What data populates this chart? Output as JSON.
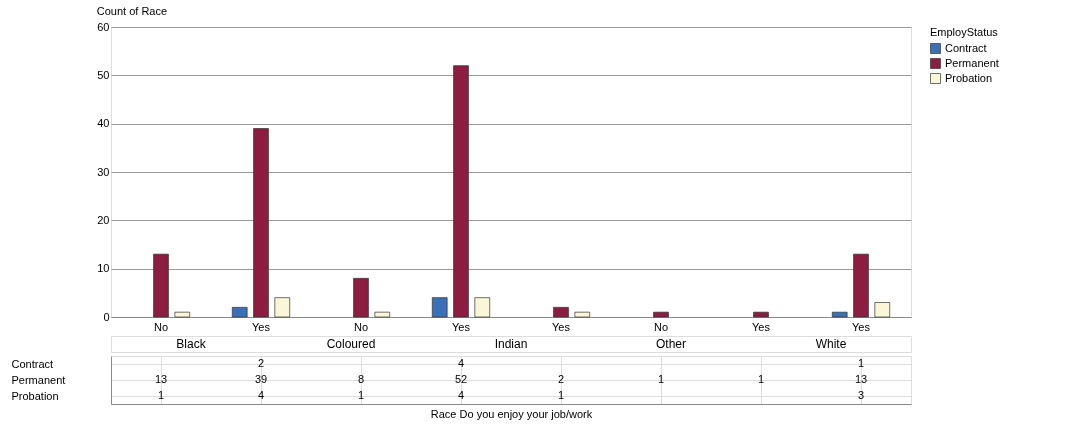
{
  "chart_data": {
    "type": "bar",
    "title": "Count of Race",
    "legend_title": "EmployStatus",
    "categories": [
      "No",
      "Yes",
      "No",
      "Yes",
      "Yes",
      "No",
      "Yes",
      "Yes"
    ],
    "annotations": [
      "Black",
      "Coloured",
      "Indian",
      "Other",
      "White",
      "Race Do you enjoy your job/work"
    ],
    "series": [
      {
        "name": "Contract",
        "color": "#3a70b8",
        "values": [
          null,
          2,
          null,
          4,
          null,
          null,
          null,
          1
        ]
      },
      {
        "name": "Permanent",
        "color": "#8c1c40",
        "values": [
          13,
          39,
          8,
          52,
          2,
          1,
          1,
          13
        ]
      },
      {
        "name": "Probation",
        "color": "#fbf6d8",
        "values": [
          1,
          4,
          1,
          4,
          1,
          null,
          null,
          3
        ]
      }
    ],
    "ylim": [
      0,
      60
    ],
    "yticks": [
      0,
      10,
      20,
      30,
      40,
      50,
      60
    ],
    "grid": "y",
    "legend": "right",
    "data_labels": true
  }
}
